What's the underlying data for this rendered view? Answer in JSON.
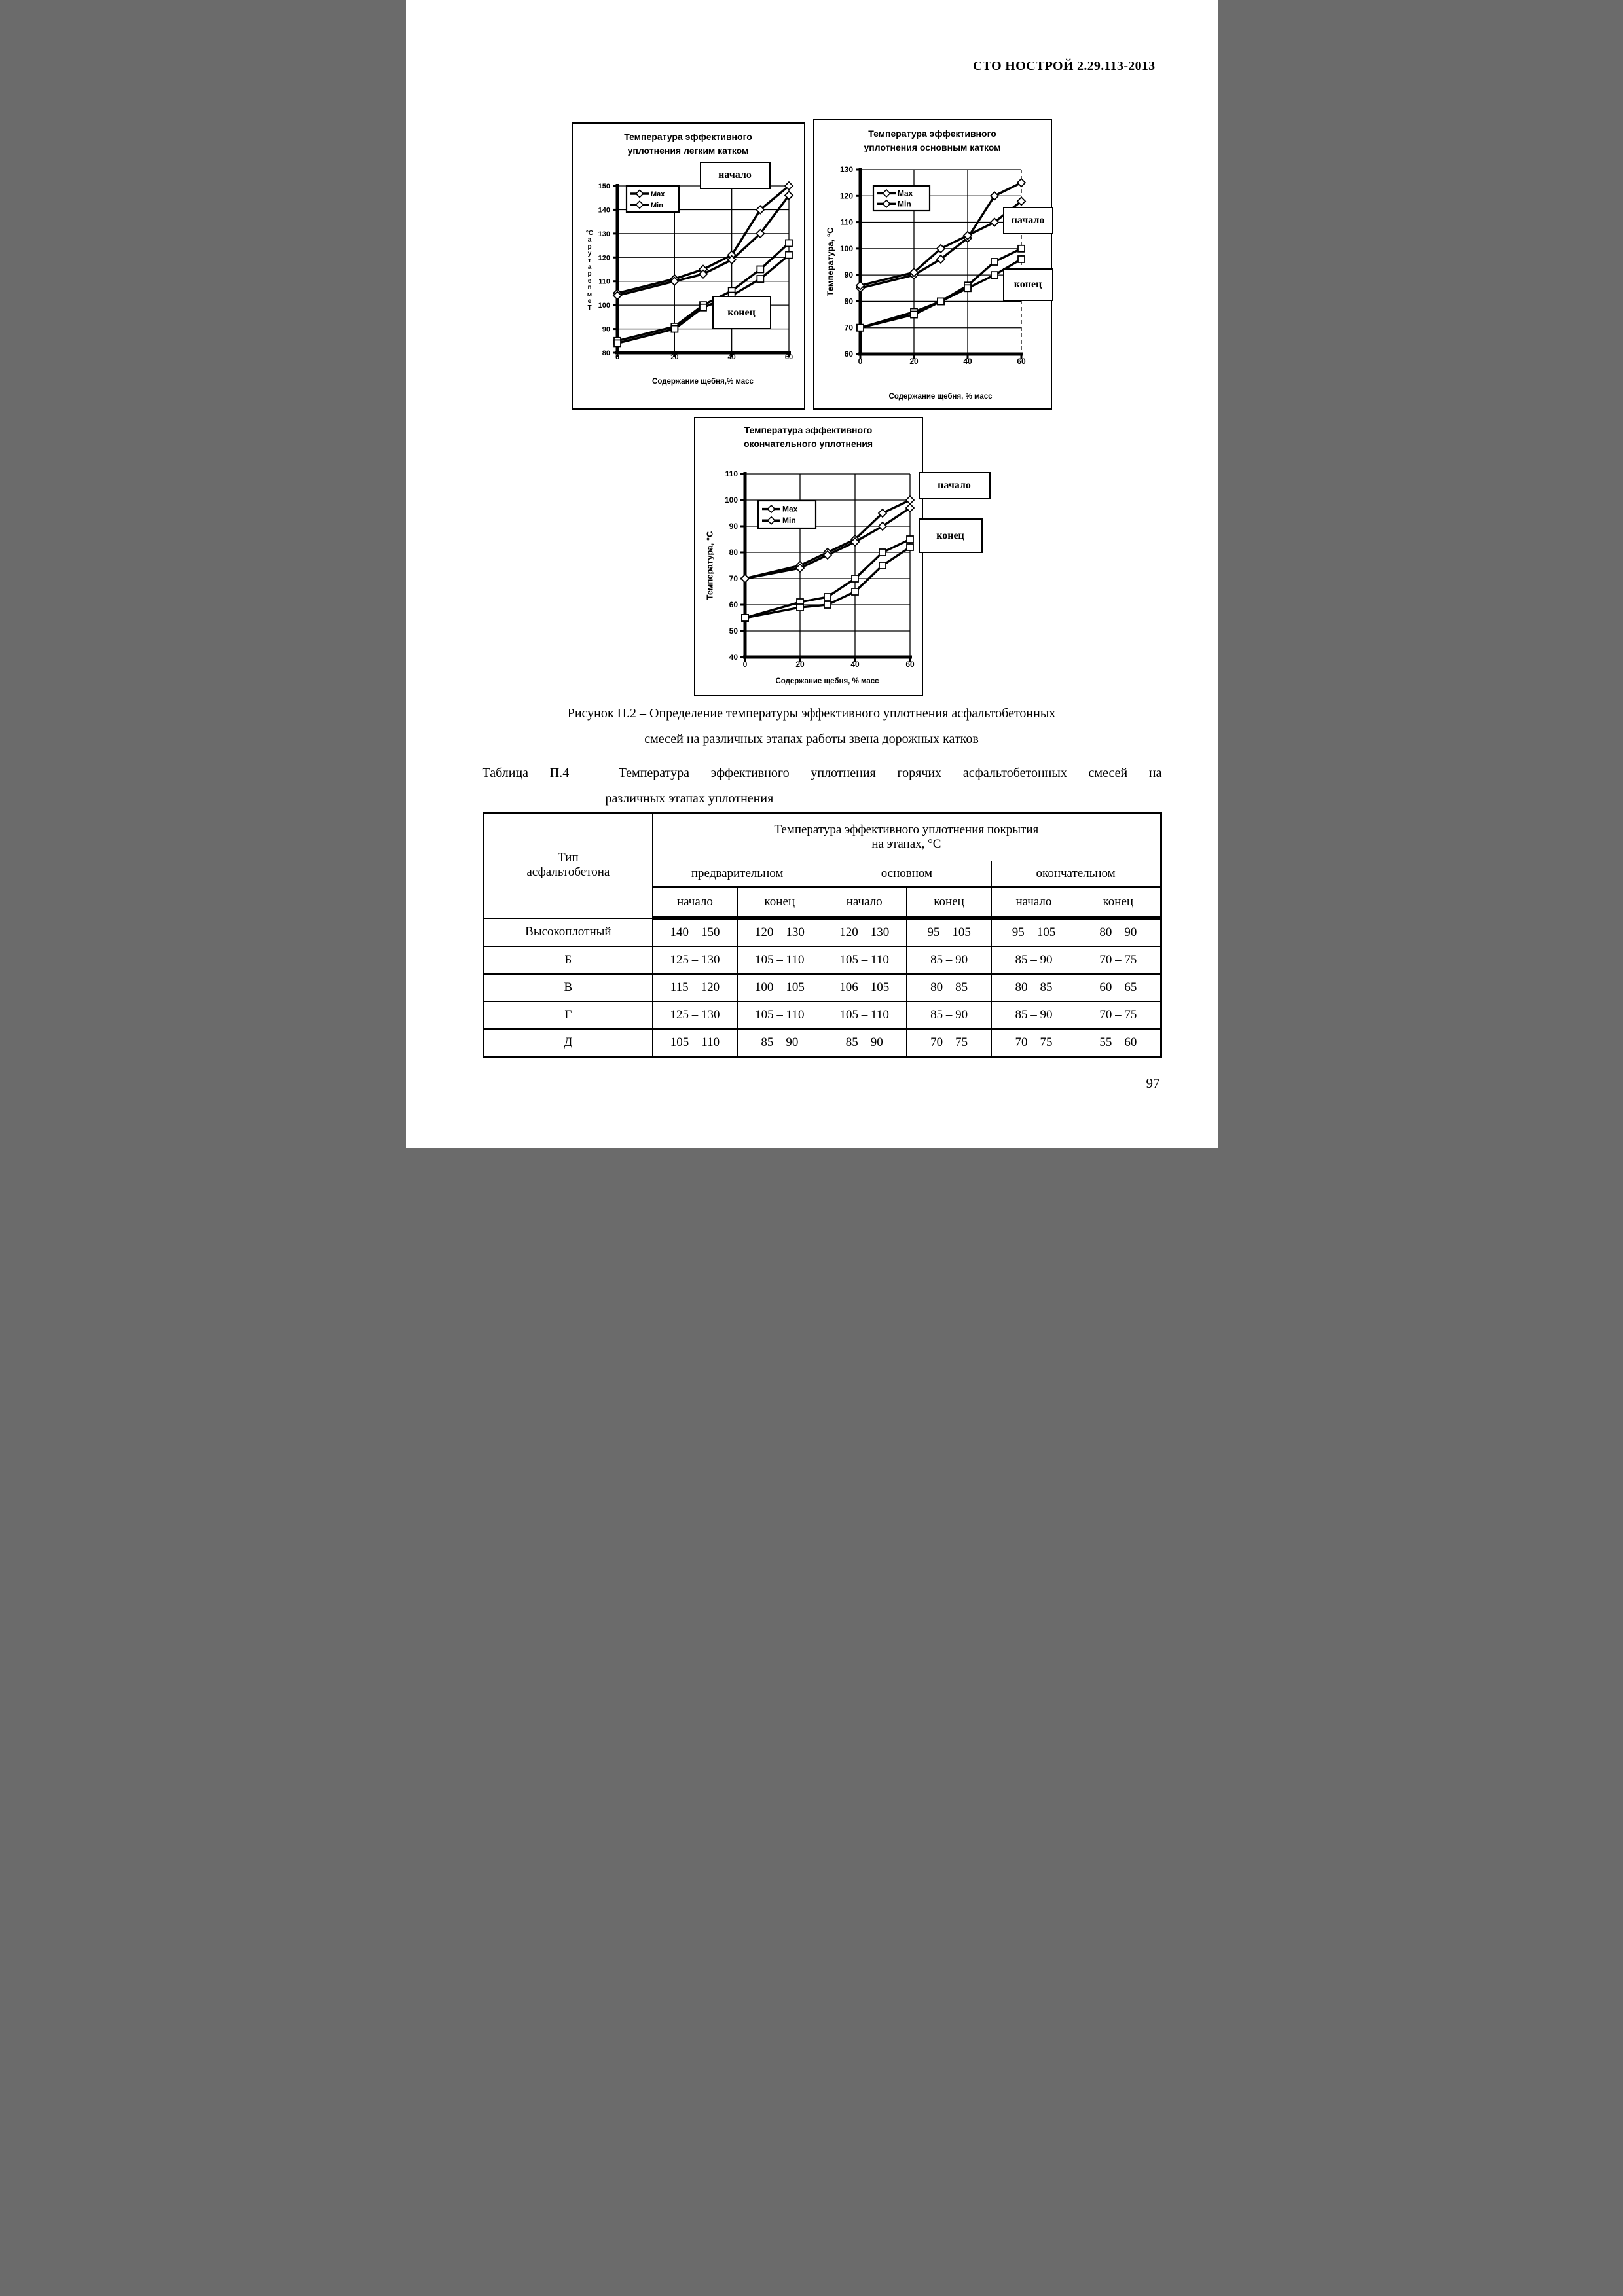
{
  "page": {
    "header": "СТО НОСТРОЙ 2.29.113-2013",
    "page_number": "97"
  },
  "figure_caption": {
    "line1": "Рисунок П.2 – Определение температуры эффективного уплотнения асфальтобетонных",
    "line2": "смесей на различных этапах работы звена дорожных катков"
  },
  "table_caption": {
    "line1": "Таблица П.4 – Температура эффективного уплотнения горячих асфальтобетонных смесей на",
    "line2": "различных этапах уплотнения"
  },
  "chart_data": [
    {
      "type": "line",
      "title_line1": "Температура эффективного",
      "title_line2": "уплотнения легким катком",
      "xlabel": "Содержание щебня,% масс",
      "ylabel": "Температура",
      "ylabel_unit": "°С",
      "xlim": [
        0,
        60
      ],
      "ylim": [
        80,
        150
      ],
      "xticks": [
        0,
        20,
        40,
        60
      ],
      "yticks": [
        150,
        140,
        130,
        120,
        110,
        100,
        90,
        80
      ],
      "x": [
        0,
        20,
        30,
        40,
        50,
        60
      ],
      "legend": [
        "Max",
        "Min"
      ],
      "annotation_start": "начало",
      "annotation_end": "конец",
      "series": [
        {
          "name": "Max",
          "stage": "начало",
          "marker": "diamond",
          "values": [
            105,
            111,
            115,
            121,
            140,
            150
          ]
        },
        {
          "name": "Min",
          "stage": "начало",
          "marker": "diamond",
          "values": [
            104,
            110,
            113,
            119,
            130,
            146
          ]
        },
        {
          "name": "Max",
          "stage": "конец",
          "marker": "square",
          "values": [
            85,
            91,
            100,
            106,
            115,
            126
          ]
        },
        {
          "name": "Min",
          "stage": "конец",
          "marker": "square",
          "values": [
            84,
            90,
            99,
            104,
            111,
            121
          ]
        }
      ]
    },
    {
      "type": "line",
      "title_line1": "Температура эффективного",
      "title_line2": "уплотнения основным катком",
      "xlabel": "Содержание щебня, % масс",
      "ylabel": "Температура, °С",
      "xlim": [
        0,
        60
      ],
      "ylim": [
        60,
        130
      ],
      "xticks": [
        0,
        20,
        40,
        60
      ],
      "yticks": [
        130,
        120,
        110,
        100,
        90,
        80,
        70,
        60
      ],
      "x": [
        0,
        20,
        30,
        40,
        50,
        60
      ],
      "legend": [
        "Max",
        "Min"
      ],
      "annotation_start": "начало",
      "annotation_end": "конец",
      "series": [
        {
          "name": "Max",
          "stage": "начало",
          "marker": "diamond",
          "values": [
            85,
            90,
            96,
            104,
            120,
            125
          ]
        },
        {
          "name": "Min",
          "stage": "начало",
          "marker": "diamond",
          "values": [
            86,
            91,
            100,
            105,
            110,
            118
          ]
        },
        {
          "name": "Max",
          "stage": "конец",
          "marker": "square",
          "values": [
            70,
            76,
            80,
            86,
            95,
            100
          ]
        },
        {
          "name": "Min",
          "stage": "конец",
          "marker": "square",
          "values": [
            70,
            75,
            80,
            85,
            90,
            96
          ]
        }
      ]
    },
    {
      "type": "line",
      "title_line1": "Температура эффективного",
      "title_line2": "окончательного уплотнения",
      "xlabel": "Содержание щебня, % масс",
      "ylabel": "Температура, °С",
      "xlim": [
        0,
        60
      ],
      "ylim": [
        40,
        110
      ],
      "xticks": [
        0,
        20,
        40,
        60
      ],
      "yticks": [
        110,
        100,
        90,
        80,
        70,
        60,
        50,
        40
      ],
      "x": [
        0,
        20,
        30,
        40,
        50,
        60
      ],
      "legend": [
        "Max",
        "Min"
      ],
      "annotation_start": "начало",
      "annotation_end": "конец",
      "series": [
        {
          "name": "Max",
          "stage": "начало",
          "marker": "diamond",
          "values": [
            70,
            75,
            80,
            85,
            95,
            100
          ]
        },
        {
          "name": "Min",
          "stage": "начало",
          "marker": "diamond",
          "values": [
            70,
            74,
            79,
            84,
            90,
            97
          ]
        },
        {
          "name": "Max",
          "stage": "конец",
          "marker": "square",
          "values": [
            55,
            61,
            63,
            70,
            80,
            85
          ]
        },
        {
          "name": "Min",
          "stage": "конец",
          "marker": "square",
          "values": [
            55,
            59,
            60,
            65,
            75,
            82
          ]
        }
      ]
    }
  ],
  "table": {
    "col_header_line1": "Тип",
    "col_header_line2": "асфальтобетона",
    "main_header_line1": "Температура эффективного уплотнения покрытия",
    "main_header_line2": "на этапах, °С",
    "stage_headers": [
      "предварительном",
      "основном",
      "окончательном"
    ],
    "sub_headers": [
      "начало",
      "конец",
      "начало",
      "конец",
      "начало",
      "конец"
    ],
    "rows": [
      {
        "type": "Высокоплотный",
        "values": [
          "140 – 150",
          "120 – 130",
          "120 – 130",
          "95 – 105",
          "95 – 105",
          "80 – 90"
        ]
      },
      {
        "type": "Б",
        "values": [
          "125 – 130",
          "105 – 110",
          "105 – 110",
          "85 – 90",
          "85 – 90",
          "70 – 75"
        ]
      },
      {
        "type": "В",
        "values": [
          "115 – 120",
          "100 – 105",
          "106 – 105",
          "80 – 85",
          "80 – 85",
          "60 – 65"
        ]
      },
      {
        "type": "Г",
        "values": [
          "125 – 130",
          "105 – 110",
          "105 – 110",
          "85 – 90",
          "85 – 90",
          "70 – 75"
        ]
      },
      {
        "type": "Д",
        "values": [
          "105 – 110",
          "85 – 90",
          "85 – 90",
          "70 – 75",
          "70 – 75",
          "55 – 60"
        ]
      }
    ]
  }
}
